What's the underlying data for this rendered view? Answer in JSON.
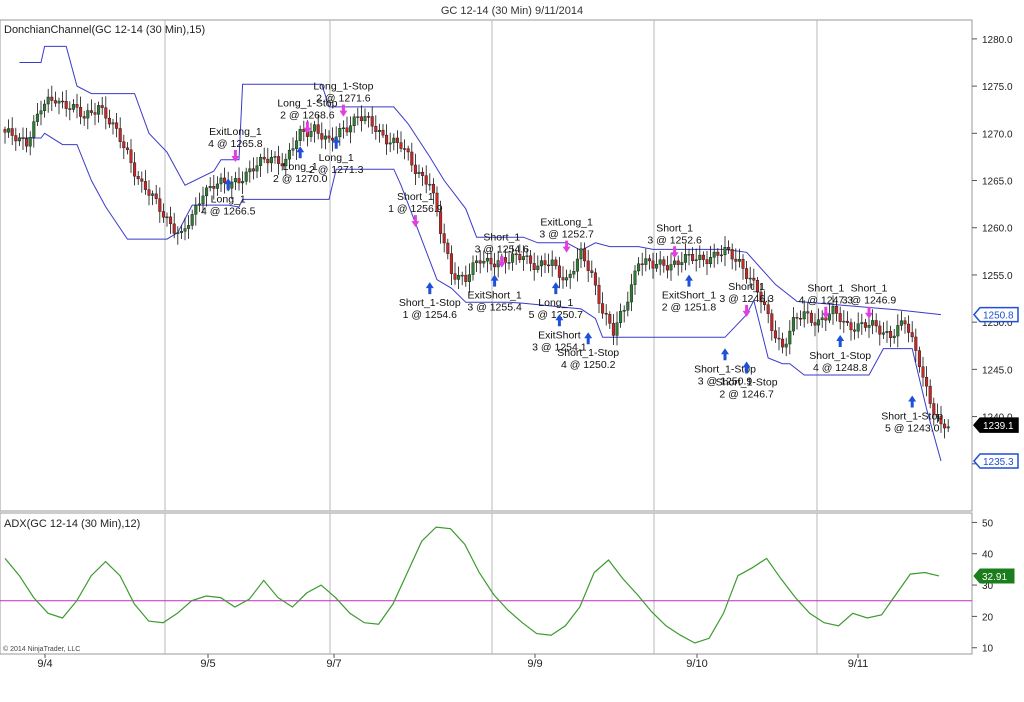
{
  "title": "GC 12-14 (30 Min)  9/11/2014",
  "copyright": "© 2014 NinjaTrader, LLC",
  "colors": {
    "up_candle": "#2e7d32",
    "down_candle": "#c62828",
    "channel": "#3a3acc",
    "adx": "#3d9a2f",
    "adx_threshold": "#c22bc2",
    "long_marker": "#1e50d8",
    "short_marker": "#e040e0",
    "price_tag_blue": "#1f4fd6",
    "price_tag_black": "#000000",
    "adx_tag": "#1b7d1b"
  },
  "chart_data": [
    {
      "type": "candlestick",
      "title": "DonchianChannel(GC 12-14 (30 Min),15)",
      "ylim": [
        1230,
        1282
      ],
      "y_ticks": [
        "1280.0",
        "1275.0",
        "1270.0",
        "1265.0",
        "1260.0",
        "1255.0",
        "1250.0",
        "1245.0",
        "1240.0",
        "1235.0"
      ],
      "x_ticks": [
        "9/4",
        "9/5",
        "9/7",
        "9/9",
        "9/10",
        "9/11"
      ],
      "price_tags": [
        {
          "label": "1250.8",
          "value": 1250.8,
          "style": "blue"
        },
        {
          "label": "1239.1",
          "value": 1239.1,
          "style": "black"
        },
        {
          "label": "1235.3",
          "value": 1235.3,
          "style": "blue"
        }
      ],
      "close_path": [
        [
          0,
          1269.8
        ],
        [
          6,
          1269.3
        ],
        [
          10,
          1272.5
        ],
        [
          14,
          1273.8
        ],
        [
          18,
          1272.9
        ],
        [
          22,
          1271.5
        ],
        [
          26,
          1273.2
        ],
        [
          30,
          1270.5
        ],
        [
          34,
          1268.0
        ],
        [
          38,
          1264.5
        ],
        [
          42,
          1262.5
        ],
        [
          46,
          1260.6
        ],
        [
          49,
          1259.0
        ],
        [
          52,
          1261.0
        ],
        [
          55,
          1264.0
        ],
        [
          58,
          1264.6
        ],
        [
          62,
          1264.4
        ],
        [
          66,
          1265.6
        ],
        [
          70,
          1266.4
        ],
        [
          74,
          1267.6
        ],
        [
          78,
          1267.0
        ],
        [
          82,
          1269.8
        ],
        [
          86,
          1270.8
        ],
        [
          90,
          1268.8
        ],
        [
          94,
          1270.6
        ],
        [
          98,
          1271.8
        ],
        [
          102,
          1270.8
        ],
        [
          106,
          1269.6
        ],
        [
          110,
          1268.5
        ],
        [
          114,
          1266.3
        ],
        [
          118,
          1264.8
        ],
        [
          121,
          1259.5
        ],
        [
          124,
          1255.5
        ],
        [
          128,
          1254.6
        ],
        [
          132,
          1256.5
        ],
        [
          136,
          1256.6
        ],
        [
          140,
          1256.3
        ],
        [
          144,
          1257.3
        ],
        [
          148,
          1255.8
        ],
        [
          152,
          1256.1
        ],
        [
          156,
          1254.6
        ],
        [
          160,
          1257.0
        ],
        [
          163,
          1255.0
        ],
        [
          166,
          1251.5
        ],
        [
          169,
          1248.8
        ],
        [
          172,
          1251.2
        ],
        [
          176,
          1256.8
        ],
        [
          180,
          1255.8
        ],
        [
          184,
          1256.2
        ],
        [
          188,
          1256.6
        ],
        [
          192,
          1256.6
        ],
        [
          196,
          1257.1
        ],
        [
          200,
          1257.3
        ],
        [
          204,
          1256.5
        ],
        [
          207,
          1254.8
        ],
        [
          210,
          1252.2
        ],
        [
          213,
          1249.5
        ],
        [
          216,
          1247.5
        ],
        [
          219,
          1249.8
        ],
        [
          222,
          1250.8
        ],
        [
          226,
          1250.2
        ],
        [
          230,
          1250.9
        ],
        [
          234,
          1249.8
        ],
        [
          238,
          1249.6
        ],
        [
          242,
          1249.4
        ],
        [
          246,
          1248.8
        ],
        [
          250,
          1249.8
        ],
        [
          254,
          1246.0
        ],
        [
          257,
          1241.6
        ],
        [
          260,
          1238.5
        ],
        [
          262,
          1239.1
        ]
      ],
      "donchian_upper": [
        [
          4,
          1277.5
        ],
        [
          10,
          1277.5
        ],
        [
          11,
          1279.2
        ],
        [
          17,
          1279.2
        ],
        [
          20,
          1275.0
        ],
        [
          24,
          1274.2
        ],
        [
          36,
          1274.2
        ],
        [
          40,
          1270.0
        ],
        [
          45,
          1268.0
        ],
        [
          50,
          1264.5
        ],
        [
          58,
          1266.0
        ],
        [
          60,
          1267.2
        ],
        [
          65,
          1267.2
        ],
        [
          66,
          1275.2
        ],
        [
          88,
          1275.2
        ],
        [
          90,
          1272.8
        ],
        [
          108,
          1272.8
        ],
        [
          112,
          1271.0
        ],
        [
          118,
          1267.5
        ],
        [
          122,
          1265.0
        ],
        [
          128,
          1262.0
        ],
        [
          131,
          1259.0
        ],
        [
          144,
          1259.0
        ],
        [
          148,
          1258.4
        ],
        [
          156,
          1258.4
        ],
        [
          160,
          1257.6
        ],
        [
          164,
          1258.4
        ],
        [
          168,
          1258.0
        ],
        [
          176,
          1258.0
        ],
        [
          180,
          1257.7
        ],
        [
          200,
          1257.7
        ],
        [
          206,
          1257.4
        ],
        [
          214,
          1254.0
        ],
        [
          220,
          1252.2
        ],
        [
          248,
          1251.3
        ],
        [
          260,
          1250.8
        ]
      ],
      "donchian_lower": [
        [
          4,
          1269.5
        ],
        [
          10,
          1269.5
        ],
        [
          11,
          1270.0
        ],
        [
          16,
          1268.8
        ],
        [
          20,
          1268.8
        ],
        [
          24,
          1265.0
        ],
        [
          28,
          1262.2
        ],
        [
          34,
          1258.8
        ],
        [
          45,
          1258.8
        ],
        [
          48,
          1259.5
        ],
        [
          52,
          1262.4
        ],
        [
          62,
          1262.4
        ],
        [
          65,
          1262.2
        ],
        [
          66,
          1263.0
        ],
        [
          90,
          1263.0
        ],
        [
          92,
          1266.2
        ],
        [
          108,
          1266.2
        ],
        [
          110,
          1264.5
        ],
        [
          120,
          1254.5
        ],
        [
          124,
          1253.6
        ],
        [
          128,
          1252.1
        ],
        [
          140,
          1252.1
        ],
        [
          144,
          1252.0
        ],
        [
          160,
          1251.4
        ],
        [
          164,
          1250.4
        ],
        [
          166,
          1248.4
        ],
        [
          200,
          1248.4
        ],
        [
          206,
          1250.8
        ],
        [
          208,
          1252.3
        ],
        [
          212,
          1246.2
        ],
        [
          216,
          1245.6
        ],
        [
          218,
          1245.6
        ],
        [
          222,
          1244.4
        ],
        [
          240,
          1244.4
        ],
        [
          244,
          1247.2
        ],
        [
          252,
          1247.2
        ],
        [
          256,
          1240.8
        ],
        [
          260,
          1235.3
        ]
      ],
      "annotations": [
        {
          "text": "Long_1-Stop",
          "text2": "2 @ 1271.6",
          "idx": 94,
          "price": 1272.4,
          "dir": "short",
          "placement": "above"
        },
        {
          "text": "Long_1-Stop",
          "text2": "2 @ 1268.6",
          "idx": 84,
          "price": 1270.6,
          "dir": "short",
          "placement": "above"
        },
        {
          "text": "ExitLong_1",
          "text2": "4 @ 1265.8",
          "idx": 64,
          "price": 1267.6,
          "dir": "short",
          "placement": "above"
        },
        {
          "text": "Long_1",
          "text2": "2 @ 1271.3",
          "idx": 92,
          "price": 1269.0,
          "dir": "long",
          "placement": "below"
        },
        {
          "text": "Long_1",
          "text2": "2 @ 1270.0",
          "idx": 82,
          "price": 1268.0,
          "dir": "long",
          "placement": "below"
        },
        {
          "text": "Long_1",
          "text2": "4 @ 1266.5",
          "idx": 62,
          "price": 1264.6,
          "dir": "long",
          "placement": "below"
        },
        {
          "text": "Short_1",
          "text2": "1 @ 1256.9",
          "idx": 114,
          "price": 1260.7,
          "dir": "short",
          "placement": "above"
        },
        {
          "text": "Short_1-Stop",
          "text2": "1 @ 1254.6",
          "idx": 118,
          "price": 1253.6,
          "dir": "long",
          "placement": "below"
        },
        {
          "text": "Short_1",
          "text2": "3 @ 1254.6",
          "idx": 138,
          "price": 1256.4,
          "dir": "short",
          "placement": "above"
        },
        {
          "text": "ExitShort_1",
          "text2": "3 @ 1255.4",
          "idx": 136,
          "price": 1254.4,
          "dir": "long",
          "placement": "below"
        },
        {
          "text": "ExitLong_1",
          "text2": "3 @ 1252.7",
          "idx": 156,
          "price": 1258.0,
          "dir": "short",
          "placement": "above"
        },
        {
          "text": "Long_1",
          "text2": "5 @ 1250.7",
          "idx": 153,
          "price": 1253.6,
          "dir": "long",
          "placement": "below"
        },
        {
          "text": "ExitShort",
          "text2": "3 @ 1254.1",
          "idx": 154,
          "price": 1250.2,
          "dir": "long",
          "placement": "below"
        },
        {
          "text": "Short_1-Stop",
          "text2": "4 @ 1250.2",
          "idx": 162,
          "price": 1248.3,
          "dir": "long",
          "placement": "below"
        },
        {
          "text": "Short_1",
          "text2": "3 @ 1252.6",
          "idx": 186,
          "price": 1257.4,
          "dir": "short",
          "placement": "above"
        },
        {
          "text": "ExitShort_1",
          "text2": "2 @ 1251.8",
          "idx": 190,
          "price": 1254.4,
          "dir": "long",
          "placement": "below"
        },
        {
          "text": "Short_1",
          "text2": "3 @ 1246.3",
          "idx": 206,
          "price": 1251.2,
          "dir": "short",
          "placement": "above"
        },
        {
          "text": "Short_1-Stop",
          "text2": "3 @ 1250.9",
          "idx": 200,
          "price": 1246.6,
          "dir": "long",
          "placement": "below"
        },
        {
          "text": "Short_1-Stop",
          "text2": "2 @ 1246.7",
          "idx": 206,
          "price": 1245.2,
          "dir": "long",
          "placement": "below"
        },
        {
          "text": "Short_1",
          "text2": "4 @ 1247.3",
          "idx": 228,
          "price": 1251.0,
          "dir": "short",
          "placement": "above"
        },
        {
          "text": "Short_1",
          "text2": "3 @ 1246.9",
          "idx": 240,
          "price": 1251.0,
          "dir": "short",
          "placement": "above"
        },
        {
          "text": "Short_1-Stop",
          "text2": "4 @ 1248.8",
          "idx": 232,
          "price": 1248.0,
          "dir": "long",
          "placement": "below"
        },
        {
          "text": "Short_1-Stop",
          "text2": "5 @ 1243.0",
          "idx": 252,
          "price": 1241.6,
          "dir": "long",
          "placement": "below"
        }
      ]
    },
    {
      "type": "line",
      "title": "ADX(GC 12-14 (30 Min),12)",
      "ylim": [
        8,
        53
      ],
      "y_ticks": [
        "50",
        "40",
        "30",
        "20",
        "10"
      ],
      "threshold": 25,
      "price_tags": [
        {
          "label": "32.91",
          "value": 32.91,
          "style": "green"
        }
      ],
      "series": [
        {
          "values": [
            [
              0,
              38.5
            ],
            [
              6,
              33
            ],
            [
              12,
              26
            ],
            [
              18,
              21
            ],
            [
              24,
              19.5
            ],
            [
              30,
              25
            ],
            [
              36,
              33
            ],
            [
              42,
              37.5
            ],
            [
              48,
              33
            ],
            [
              54,
              24
            ],
            [
              60,
              18.5
            ],
            [
              66,
              18
            ],
            [
              72,
              21
            ],
            [
              78,
              25
            ],
            [
              84,
              26.5
            ],
            [
              90,
              26
            ],
            [
              96,
              23
            ],
            [
              102,
              25.5
            ],
            [
              108,
              31.5
            ],
            [
              114,
              26
            ],
            [
              120,
              23
            ],
            [
              126,
              27.5
            ],
            [
              132,
              30
            ],
            [
              138,
              26
            ],
            [
              144,
              21
            ],
            [
              150,
              18
            ],
            [
              156,
              17.5
            ],
            [
              162,
              24
            ],
            [
              168,
              34
            ],
            [
              174,
              44
            ],
            [
              180,
              48.5
            ],
            [
              186,
              48
            ],
            [
              192,
              43
            ],
            [
              198,
              34
            ],
            [
              204,
              27
            ],
            [
              210,
              22
            ],
            [
              216,
              18
            ],
            [
              222,
              14.5
            ],
            [
              228,
              14
            ],
            [
              234,
              17
            ],
            [
              240,
              23
            ],
            [
              246,
              34
            ],
            [
              252,
              38
            ],
            [
              258,
              32
            ],
            [
              264,
              27
            ],
            [
              270,
              21.5
            ],
            [
              276,
              17
            ],
            [
              282,
              14
            ],
            [
              288,
              11.5
            ],
            [
              294,
              13
            ],
            [
              300,
              21
            ],
            [
              306,
              33
            ],
            [
              312,
              35.5
            ],
            [
              318,
              38.5
            ],
            [
              324,
              32
            ],
            [
              330,
              26
            ],
            [
              336,
              21
            ],
            [
              342,
              18
            ],
            [
              348,
              17
            ],
            [
              354,
              21
            ],
            [
              360,
              19.5
            ],
            [
              366,
              20.5
            ],
            [
              372,
              27
            ],
            [
              378,
              33.5
            ],
            [
              384,
              34
            ],
            [
              390,
              32.91
            ]
          ]
        }
      ]
    }
  ]
}
